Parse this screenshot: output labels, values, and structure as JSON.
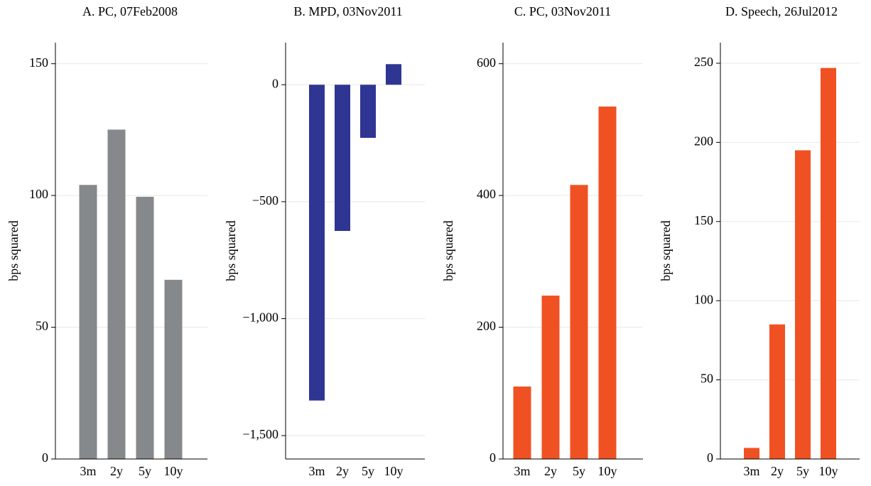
{
  "chart_data": [
    {
      "type": "bar",
      "title": "A. PC, 07Feb2008",
      "y_label": "bps squared",
      "categories": [
        "3m",
        "2y",
        "5y",
        "10y"
      ],
      "values": [
        104,
        125,
        99.5,
        68
      ],
      "color": "#86898c",
      "ylim": [
        0,
        158
      ],
      "yticks": [
        0,
        50,
        100,
        150
      ],
      "grid": true
    },
    {
      "type": "bar",
      "title": "B. MPD, 03Nov2011",
      "y_label": "bps squared",
      "categories": [
        "3m",
        "2y",
        "5y",
        "10y"
      ],
      "values": [
        -1350,
        -625,
        -227,
        88
      ],
      "color": "#2e3593",
      "ylim": [
        -1600,
        180
      ],
      "yticks": [
        0,
        {
          "value": -500,
          "label": "−500"
        },
        {
          "value": -1000,
          "label": "−1,000"
        },
        {
          "value": -1500,
          "label": "−1,500"
        }
      ],
      "grid": true
    },
    {
      "type": "bar",
      "title": "C. PC, 03Nov2011",
      "y_label": "bps squared",
      "categories": [
        "3m",
        "2y",
        "5y",
        "10y"
      ],
      "values": [
        110,
        248,
        416,
        535
      ],
      "color": "#f05123",
      "ylim": [
        0,
        632
      ],
      "yticks": [
        0,
        200,
        400,
        600
      ],
      "grid": true
    },
    {
      "type": "bar",
      "title": "D. Speech, 26Jul2012",
      "y_label": "bps squared",
      "categories": [
        "3m",
        "2y",
        "5y",
        "10y"
      ],
      "values": [
        7,
        85,
        195,
        247
      ],
      "color": "#f05123",
      "ylim": [
        0,
        263
      ],
      "yticks": [
        0,
        50,
        100,
        150,
        200,
        250
      ],
      "grid": true
    }
  ]
}
